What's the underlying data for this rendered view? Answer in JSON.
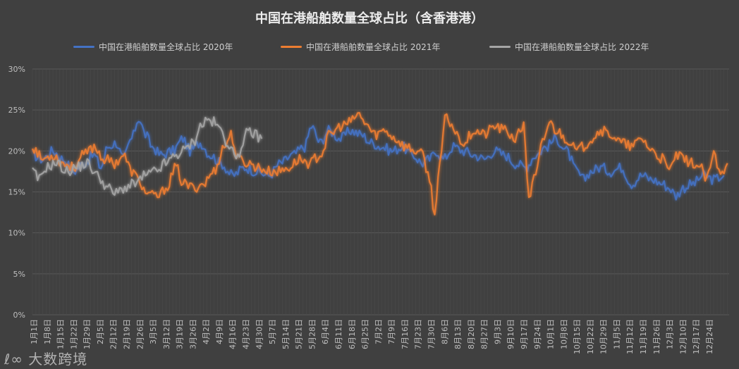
{
  "chart_data": {
    "type": "line",
    "title": "中国在港船舶数量全球占比（含香港港）",
    "yticks": [
      "0%",
      "5%",
      "10%",
      "15%",
      "20%",
      "25%",
      "30%"
    ],
    "ylim": [
      0,
      30
    ],
    "grid": true,
    "legend_position": "top",
    "categories": [
      "1月1日",
      "1月8日",
      "1月15日",
      "1月22日",
      "1月29日",
      "2月5日",
      "2月12日",
      "2月19日",
      "2月26日",
      "3月5日",
      "3月12日",
      "3月19日",
      "3月26日",
      "4月2日",
      "4月9日",
      "4月16日",
      "4月23日",
      "4月30日",
      "5月7日",
      "5月14日",
      "5月21日",
      "5月28日",
      "6月4日",
      "6月11日",
      "6月18日",
      "6月25日",
      "7月2日",
      "7月9日",
      "7月16日",
      "7月23日",
      "7月30日",
      "8月6日",
      "8月13日",
      "8月20日",
      "8月27日",
      "9月3日",
      "9月10日",
      "9月17日",
      "9月24日",
      "10月1日",
      "10月8日",
      "10月15日",
      "10月22日",
      "10月29日",
      "11月5日",
      "11月12日",
      "11月19日",
      "11月26日",
      "12月3日",
      "12月10日",
      "12月17日",
      "12月24日"
    ],
    "series": [
      {
        "name": "中国在港船舶数量全球占比 2020年",
        "color": "#4472c4",
        "anchors": [
          [
            0,
            19.5
          ],
          [
            6,
            19.0
          ],
          [
            12,
            20.0
          ],
          [
            18,
            19.0
          ],
          [
            24,
            17.5
          ],
          [
            30,
            18.5
          ],
          [
            36,
            19.5
          ],
          [
            40,
            18.0
          ],
          [
            44,
            20.5
          ],
          [
            49,
            21.0
          ],
          [
            53,
            19.0
          ],
          [
            58,
            21.5
          ],
          [
            62,
            24.0
          ],
          [
            66,
            22.0
          ],
          [
            70,
            20.5
          ],
          [
            75,
            19.5
          ],
          [
            82,
            20.0
          ],
          [
            88,
            21.5
          ],
          [
            92,
            20.0
          ],
          [
            98,
            21.0
          ],
          [
            104,
            19.5
          ],
          [
            110,
            18.5
          ],
          [
            117,
            17.0
          ],
          [
            124,
            18.0
          ],
          [
            131,
            17.5
          ],
          [
            138,
            17.0
          ],
          [
            145,
            18.5
          ],
          [
            152,
            19.5
          ],
          [
            159,
            20.5
          ],
          [
            163,
            23.0
          ],
          [
            168,
            21.0
          ],
          [
            173,
            22.5
          ],
          [
            180,
            21.5
          ],
          [
            186,
            22.5
          ],
          [
            192,
            22.0
          ],
          [
            198,
            21.0
          ],
          [
            204,
            20.5
          ],
          [
            210,
            20.0
          ],
          [
            216,
            20.5
          ],
          [
            222,
            19.5
          ],
          [
            228,
            18.5
          ],
          [
            232,
            19.0
          ],
          [
            236,
            20.0
          ],
          [
            240,
            19.0
          ],
          [
            246,
            20.5
          ],
          [
            252,
            20.0
          ],
          [
            258,
            19.5
          ],
          [
            264,
            19.0
          ],
          [
            270,
            20.0
          ],
          [
            276,
            19.5
          ],
          [
            282,
            18.5
          ],
          [
            288,
            18.0
          ],
          [
            294,
            19.5
          ],
          [
            300,
            20.5
          ],
          [
            306,
            21.5
          ],
          [
            312,
            20.0
          ],
          [
            318,
            17.5
          ],
          [
            322,
            16.5
          ],
          [
            326,
            17.5
          ],
          [
            332,
            18.0
          ],
          [
            338,
            17.5
          ],
          [
            344,
            18.0
          ],
          [
            350,
            16.0
          ],
          [
            356,
            17.0
          ],
          [
            362,
            16.5
          ],
          [
            368,
            16.0
          ],
          [
            372,
            15.5
          ],
          [
            376,
            14.5
          ],
          [
            380,
            15.5
          ],
          [
            386,
            16.0
          ],
          [
            392,
            17.0
          ],
          [
            398,
            16.5
          ],
          [
            404,
            17.0
          ]
        ]
      },
      {
        "name": "中国在港船舶数量全球占比 2021年",
        "color": "#ed7d31",
        "anchors": [
          [
            0,
            20.5
          ],
          [
            6,
            19.0
          ],
          [
            12,
            19.5
          ],
          [
            18,
            18.5
          ],
          [
            24,
            18.0
          ],
          [
            30,
            19.5
          ],
          [
            36,
            20.5
          ],
          [
            42,
            19.0
          ],
          [
            48,
            18.5
          ],
          [
            53,
            19.5
          ],
          [
            58,
            17.5
          ],
          [
            62,
            16.5
          ],
          [
            66,
            15.0
          ],
          [
            70,
            14.5
          ],
          [
            74,
            14.5
          ],
          [
            78,
            15.5
          ],
          [
            84,
            18.0
          ],
          [
            88,
            16.0
          ],
          [
            94,
            15.5
          ],
          [
            100,
            16.0
          ],
          [
            106,
            17.5
          ],
          [
            112,
            20.5
          ],
          [
            116,
            22.0
          ],
          [
            120,
            19.0
          ],
          [
            126,
            18.5
          ],
          [
            132,
            18.0
          ],
          [
            138,
            17.5
          ],
          [
            144,
            17.5
          ],
          [
            150,
            18.0
          ],
          [
            156,
            19.0
          ],
          [
            162,
            18.5
          ],
          [
            168,
            19.5
          ],
          [
            174,
            22.0
          ],
          [
            180,
            23.0
          ],
          [
            186,
            23.5
          ],
          [
            190,
            24.5
          ],
          [
            194,
            23.5
          ],
          [
            200,
            22.0
          ],
          [
            206,
            22.5
          ],
          [
            212,
            21.5
          ],
          [
            218,
            20.5
          ],
          [
            224,
            20.0
          ],
          [
            228,
            19.5
          ],
          [
            232,
            16.5
          ],
          [
            235,
            12.5
          ],
          [
            238,
            18.0
          ],
          [
            241,
            24.0
          ],
          [
            244,
            23.5
          ],
          [
            248,
            22.0
          ],
          [
            252,
            21.0
          ],
          [
            258,
            22.5
          ],
          [
            264,
            22.0
          ],
          [
            270,
            23.0
          ],
          [
            276,
            22.5
          ],
          [
            282,
            21.5
          ],
          [
            287,
            23.0
          ],
          [
            290,
            14.5
          ],
          [
            294,
            17.0
          ],
          [
            298,
            21.0
          ],
          [
            302,
            23.5
          ],
          [
            306,
            22.5
          ],
          [
            312,
            21.5
          ],
          [
            318,
            20.0
          ],
          [
            322,
            20.5
          ],
          [
            326,
            21.5
          ],
          [
            332,
            22.5
          ],
          [
            338,
            22.0
          ],
          [
            344,
            21.0
          ],
          [
            350,
            20.5
          ],
          [
            356,
            21.5
          ],
          [
            362,
            20.0
          ],
          [
            368,
            19.0
          ],
          [
            372,
            17.5
          ],
          [
            376,
            19.5
          ],
          [
            380,
            19.0
          ],
          [
            386,
            18.5
          ],
          [
            390,
            18.0
          ],
          [
            394,
            16.5
          ],
          [
            398,
            19.5
          ],
          [
            402,
            17.0
          ],
          [
            406,
            18.5
          ]
        ]
      },
      {
        "name": "中国在港船舶数量全球占比 2022年",
        "color": "#a5a5a5",
        "anchors": [
          [
            0,
            17.5
          ],
          [
            4,
            16.5
          ],
          [
            8,
            18.0
          ],
          [
            14,
            18.5
          ],
          [
            20,
            17.5
          ],
          [
            26,
            18.0
          ],
          [
            32,
            18.5
          ],
          [
            38,
            17.0
          ],
          [
            44,
            15.5
          ],
          [
            48,
            14.8
          ],
          [
            54,
            15.5
          ],
          [
            60,
            16.0
          ],
          [
            66,
            17.0
          ],
          [
            72,
            17.5
          ],
          [
            78,
            18.5
          ],
          [
            84,
            19.5
          ],
          [
            88,
            20.0
          ],
          [
            94,
            21.0
          ],
          [
            98,
            23.0
          ],
          [
            102,
            23.8
          ],
          [
            106,
            23.5
          ],
          [
            110,
            22.5
          ],
          [
            114,
            21.0
          ],
          [
            118,
            19.5
          ],
          [
            122,
            20.0
          ],
          [
            126,
            22.5
          ],
          [
            130,
            22.0
          ],
          [
            134,
            21.5
          ]
        ]
      }
    ]
  },
  "watermark": "大数跨境"
}
